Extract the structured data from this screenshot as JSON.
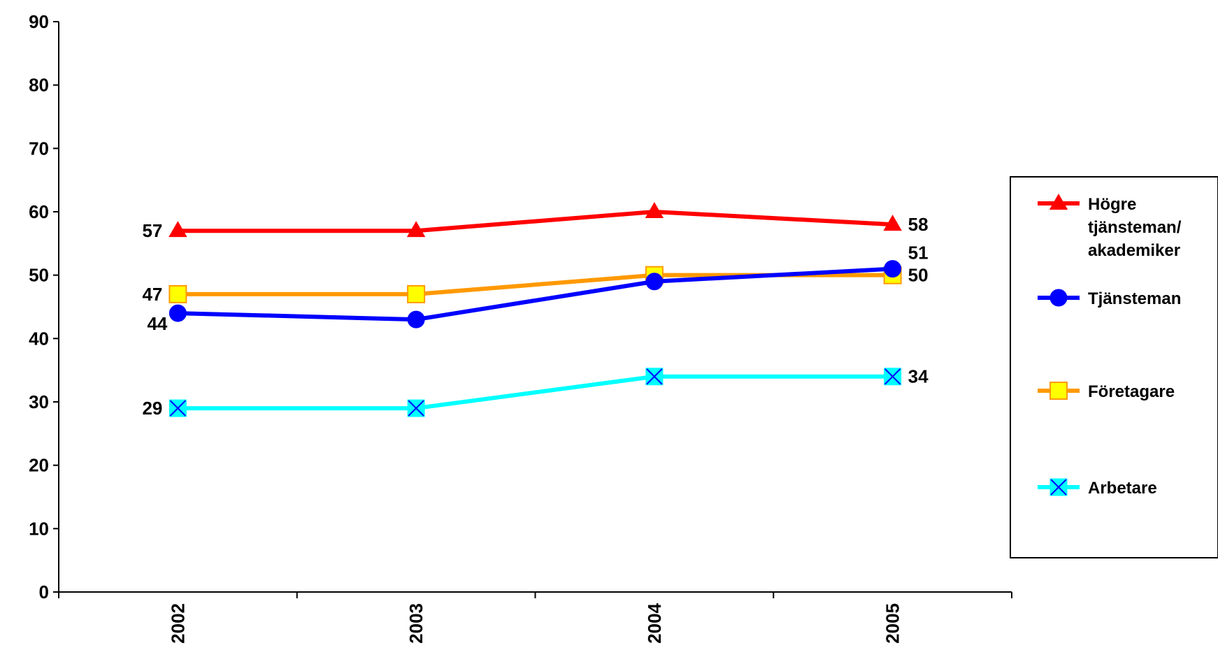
{
  "chart_data": {
    "type": "line",
    "categories": [
      "2002",
      "2003",
      "2004",
      "2005"
    ],
    "ylim": [
      0,
      90
    ],
    "yticks": [
      "0",
      "10",
      "20",
      "30",
      "40",
      "50",
      "60",
      "70",
      "80",
      "90"
    ],
    "grid": false,
    "legend_position": "right",
    "series": [
      {
        "name": "Högre tjänsteman/ akademiker",
        "name_lines": [
          "Högre",
          "tjänsteman/",
          "akademiker"
        ],
        "values": [
          57,
          57,
          60,
          58
        ],
        "color": "#ff0000",
        "marker": "triangle",
        "labels": {
          "0": "57",
          "3": "58"
        }
      },
      {
        "name": "Tjänsteman",
        "name_lines": [
          "Tjänsteman"
        ],
        "values": [
          44,
          43,
          49,
          51
        ],
        "color": "#0000ff",
        "marker": "circle",
        "labels": {
          "0": "44",
          "3": "51"
        }
      },
      {
        "name": "Företagare",
        "name_lines": [
          "Företagare"
        ],
        "values": [
          47,
          47,
          50,
          50
        ],
        "color": "#ff9900",
        "marker": "square",
        "labels": {
          "0": "47",
          "3": "50"
        }
      },
      {
        "name": "Arbetare",
        "name_lines": [
          "Arbetare"
        ],
        "values": [
          29,
          29,
          34,
          34
        ],
        "color": "#00ffff",
        "marker": "x",
        "labels": {
          "0": "29",
          "3": "34"
        }
      }
    ]
  }
}
